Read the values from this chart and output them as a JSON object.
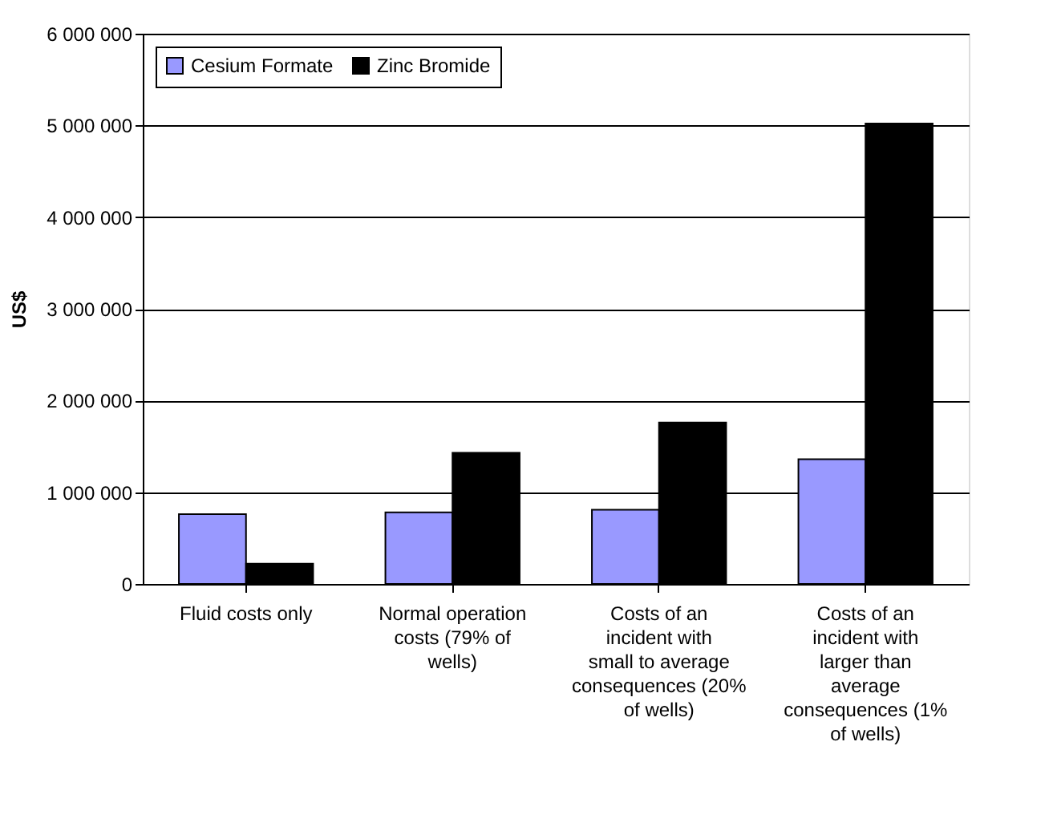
{
  "chart_data": {
    "type": "bar",
    "ylabel": "US$",
    "categories": [
      "Fluid costs only",
      "Normal operation costs (79% of wells)",
      "Costs of an incident with small to average consequences (20% of wells)",
      "Costs of an incident with larger than average consequences (1% of wells)"
    ],
    "series": [
      {
        "name": "Cesium Formate",
        "color": "#9999ff",
        "values": [
          760000,
          780000,
          810000,
          1360000
        ]
      },
      {
        "name": "Zinc Bromide",
        "color": "#000000",
        "values": [
          220000,
          1430000,
          1760000,
          5020000
        ]
      }
    ],
    "ylim": [
      0,
      6000000
    ],
    "yticks": [
      0,
      {
        "value": 1000000,
        "label": "1 000 000"
      },
      {
        "value": 2000000,
        "label": "2 000 000"
      },
      {
        "value": 3000000,
        "label": "3 000 000"
      },
      {
        "value": 4000000,
        "label": "4 000 000"
      },
      {
        "value": 5000000,
        "label": "5 000 000"
      },
      {
        "value": 6000000,
        "label": "6 000 000"
      }
    ],
    "grid": "y",
    "legend": "top left"
  }
}
